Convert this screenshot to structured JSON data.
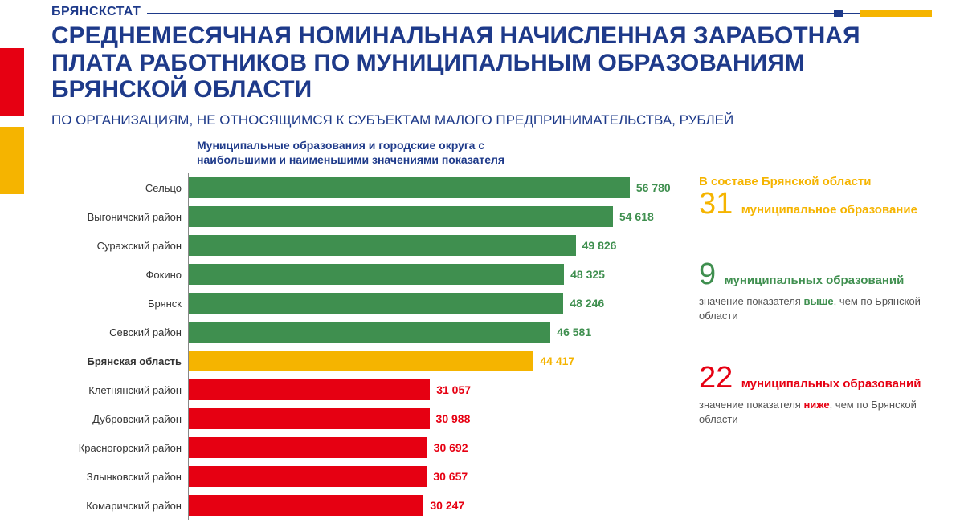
{
  "brand": "БРЯНСКСТАТ",
  "title": "СРЕДНЕМЕСЯЧНАЯ НОМИНАЛЬНАЯ НАЧИСЛЕННАЯ ЗАРАБОТНАЯ ПЛАТА РАБОТНИКОВ ПО МУНИЦИПАЛЬНЫМ ОБРАЗОВАНИЯМ БРЯНСКОЙ ОБЛАСТИ",
  "subtitle": "ПО ОРГАНИЗАЦИЯМ, НЕ ОТНОСЯЩИМСЯ К СУБЪЕКТАМ МАЛОГО ПРЕДПРИНИМАТЕЛЬСТВА, РУБЛЕЙ",
  "chart": {
    "type": "bar-horizontal",
    "title": "Муниципальные образования и городские округа с наибольшими и наименьшими значениями показателя",
    "x_max": 60000,
    "text_fontsize": 13,
    "value_fontsize": 14,
    "colors": {
      "above": "#3f8f4f",
      "ref": "#f5b400",
      "below": "#e60012",
      "value_above": "#3f8f4f",
      "value_ref": "#f5b400",
      "value_below": "#e60012",
      "axis": "#888888"
    },
    "rows": [
      {
        "label": "Сельцо",
        "value": 56780,
        "value_text": "56 780",
        "group": "above",
        "bold": false
      },
      {
        "label": "Выгоничский район",
        "value": 54618,
        "value_text": "54 618",
        "group": "above",
        "bold": false
      },
      {
        "label": "Суражский район",
        "value": 49826,
        "value_text": "49 826",
        "group": "above",
        "bold": false
      },
      {
        "label": "Фокино",
        "value": 48325,
        "value_text": "48 325",
        "group": "above",
        "bold": false
      },
      {
        "label": "Брянск",
        "value": 48246,
        "value_text": "48 246",
        "group": "above",
        "bold": false
      },
      {
        "label": "Севский район",
        "value": 46581,
        "value_text": "46 581",
        "group": "above",
        "bold": false
      },
      {
        "label": "Брянская область",
        "value": 44417,
        "value_text": "44 417",
        "group": "ref",
        "bold": true
      },
      {
        "label": "Клетнянский район",
        "value": 31057,
        "value_text": "31 057",
        "group": "below",
        "bold": false
      },
      {
        "label": "Дубровский район",
        "value": 30988,
        "value_text": "30 988",
        "group": "below",
        "bold": false
      },
      {
        "label": "Красногорский район",
        "value": 30692,
        "value_text": "30 692",
        "group": "below",
        "bold": false
      },
      {
        "label": "Злынковский район",
        "value": 30657,
        "value_text": "30 657",
        "group": "below",
        "bold": false
      },
      {
        "label": "Комаричский район",
        "value": 30247,
        "value_text": "30 247",
        "group": "below",
        "bold": false
      }
    ]
  },
  "side": {
    "block1": {
      "lead": "В составе Брянской области",
      "num": "31",
      "after": "муниципальное образование",
      "color": "#f5b400"
    },
    "block2": {
      "num": "9",
      "after": "муниципальных образований",
      "desc_pre": "значение показателя ",
      "desc_em": "выше",
      "desc_post": ", чем по Брянской области",
      "color": "#3f8f4f"
    },
    "block3": {
      "num": "22",
      "after": "муниципальных образований",
      "desc_pre": "значение показателя ",
      "desc_em": "ниже",
      "desc_post": ", чем по Брянской области",
      "color": "#e60012"
    }
  },
  "decor": {
    "brand_color": "#1e3a8a",
    "title_color": "#1e3a8a",
    "background": "#ffffff"
  }
}
